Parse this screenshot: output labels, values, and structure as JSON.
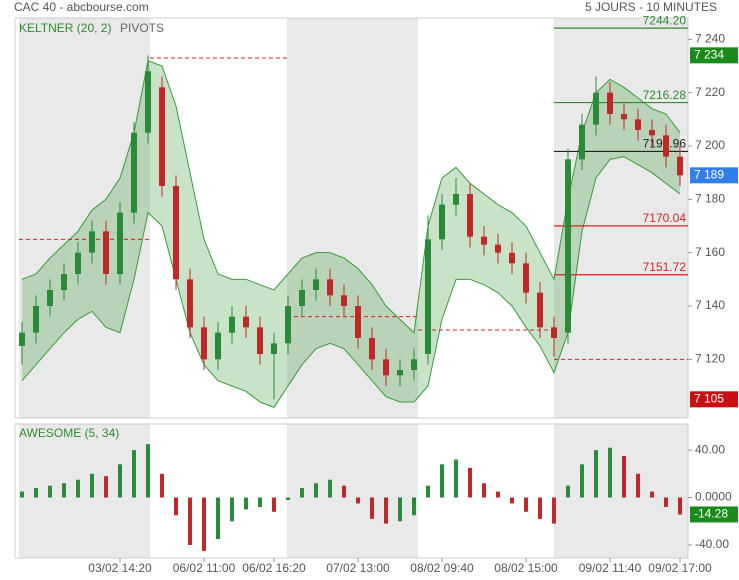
{
  "header": {
    "left": "CAC 40 - abcbourse.com",
    "right": "5 JOURS - 10 MINUTES"
  },
  "chart_data": [
    {
      "type": "candlestick",
      "legend": [
        "KELTNER (20, 2)",
        "PIVOTS"
      ],
      "up_color": "#2a8a3a",
      "down_color": "#c0282a",
      "band_color": "#3a9a3a",
      "categories": [
        null,
        null,
        null,
        null,
        null,
        null,
        null,
        "03/02 14:20",
        null,
        null,
        null,
        null,
        null,
        "06/02 11:00",
        null,
        null,
        null,
        null,
        "06/02 16:20",
        null,
        null,
        null,
        null,
        null,
        "07/02 13:00",
        null,
        null,
        null,
        null,
        null,
        "08/02 09:40",
        null,
        null,
        null,
        null,
        null,
        "08/02 15:00",
        null,
        null,
        null,
        null,
        null,
        "09/02 11:40",
        null,
        null,
        null,
        null,
        "09/02 17:00"
      ],
      "open": [
        7125,
        7130,
        7140,
        7146,
        7152,
        7160,
        7168,
        7152,
        7175,
        7205,
        7222,
        7185,
        7150,
        7132,
        7120,
        7130,
        7136,
        7132,
        7122,
        7126,
        7140,
        7146,
        7150,
        7144,
        7140,
        7128,
        7120,
        7114,
        7116,
        7122,
        7165,
        7178,
        7182,
        7166,
        7163,
        7160,
        7156,
        7145,
        7132,
        7130,
        7195,
        7208,
        7220,
        7212,
        7210,
        7206,
        7204,
        7196
      ],
      "high": [
        7134,
        7144,
        7150,
        7156,
        7164,
        7172,
        7172,
        7179,
        7209,
        7234,
        7226,
        7189,
        7154,
        7136,
        7134,
        7140,
        7140,
        7136,
        7130,
        7144,
        7150,
        7154,
        7154,
        7148,
        7144,
        7132,
        7124,
        7120,
        7124,
        7174,
        7182,
        7188,
        7186,
        7170,
        7167,
        7164,
        7160,
        7149,
        7136,
        7199,
        7212,
        7226,
        7224,
        7216,
        7214,
        7210,
        7208,
        7200
      ],
      "low": [
        7118,
        7126,
        7136,
        7142,
        7148,
        7156,
        7148,
        7148,
        7171,
        7201,
        7181,
        7146,
        7128,
        7116,
        7116,
        7126,
        7128,
        7118,
        7105,
        7122,
        7136,
        7142,
        7140,
        7136,
        7124,
        7116,
        7110,
        7110,
        7112,
        7118,
        7161,
        7174,
        7162,
        7159,
        7156,
        7152,
        7141,
        7128,
        7121,
        7126,
        7191,
        7204,
        7208,
        7206,
        7202,
        7200,
        7192,
        7185
      ],
      "close": [
        7130,
        7140,
        7146,
        7152,
        7160,
        7168,
        7152,
        7175,
        7205,
        7228,
        7185,
        7150,
        7132,
        7120,
        7130,
        7136,
        7132,
        7122,
        7126,
        7140,
        7146,
        7150,
        7144,
        7140,
        7128,
        7120,
        7114,
        7116,
        7120,
        7165,
        7178,
        7182,
        7166,
        7163,
        7160,
        7156,
        7145,
        7132,
        7128,
        7195,
        7208,
        7220,
        7212,
        7210,
        7206,
        7204,
        7196,
        7189
      ],
      "keltner_upper": [
        7150,
        7152,
        7158,
        7163,
        7168,
        7176,
        7180,
        7188,
        7205,
        7232,
        7230,
        7215,
        7190,
        7165,
        7152,
        7150,
        7150,
        7148,
        7146,
        7152,
        7158,
        7160,
        7160,
        7158,
        7154,
        7148,
        7140,
        7135,
        7130,
        7170,
        7188,
        7192,
        7186,
        7182,
        7178,
        7175,
        7170,
        7160,
        7150,
        7180,
        7205,
        7220,
        7225,
        7222,
        7218,
        7214,
        7212,
        7205
      ],
      "keltner_lower": [
        7112,
        7118,
        7124,
        7130,
        7135,
        7138,
        7132,
        7130,
        7150,
        7175,
        7170,
        7150,
        7130,
        7118,
        7112,
        7110,
        7108,
        7104,
        7102,
        7110,
        7118,
        7124,
        7126,
        7124,
        7118,
        7112,
        7106,
        7104,
        7104,
        7110,
        7135,
        7150,
        7150,
        7148,
        7145,
        7140,
        7132,
        7125,
        7115,
        7130,
        7168,
        7188,
        7195,
        7196,
        7193,
        7190,
        7186,
        7182
      ],
      "pivots": [
        {
          "value": 7244.2,
          "label": "7244.20",
          "color": "#2e8b2e"
        },
        {
          "value": 7216.28,
          "label": "7216.28",
          "color": "#2e8b2e"
        },
        {
          "value": 7197.96,
          "label": "7197.96",
          "color": "#222222"
        },
        {
          "value": 7170.04,
          "label": "7170.04",
          "color": "#d62020"
        },
        {
          "value": 7151.72,
          "label": "7151.72",
          "color": "#d62020"
        }
      ],
      "previous_pivots": [
        7165,
        7233,
        7136,
        7131,
        7120
      ],
      "price_markers": [
        {
          "value": 7234,
          "label": "7 234",
          "color": "#1a8a1a"
        },
        {
          "value": 7189,
          "label": "7 189",
          "color": "#2f7fe8"
        },
        {
          "value": 7105,
          "label": "7 105",
          "color": "#c81010"
        }
      ],
      "ylim": [
        7098,
        7248
      ],
      "yticks": [
        {
          "value": 7120,
          "label": "7 120"
        },
        {
          "value": 7140,
          "label": "7 140"
        },
        {
          "value": 7160,
          "label": "7 160"
        },
        {
          "value": 7180,
          "label": "7 180"
        },
        {
          "value": 7200,
          "label": "7 200"
        },
        {
          "value": 7220,
          "label": "7 220"
        },
        {
          "value": 7240,
          "label": "7 240"
        }
      ]
    },
    {
      "type": "bar",
      "title": "AWESOME (5, 34)",
      "up_color": "#2a8a3a",
      "down_color": "#c0282a",
      "last_color": "#1a8a1a",
      "values": [
        5,
        8,
        10,
        12,
        15,
        20,
        18,
        28,
        40,
        45,
        20,
        -15,
        -40,
        -45,
        -35,
        -20,
        -10,
        -8,
        -12,
        -2,
        8,
        12,
        15,
        10,
        -5,
        -18,
        -22,
        -20,
        -15,
        10,
        28,
        32,
        25,
        12,
        5,
        -5,
        -12,
        -18,
        -22,
        10,
        28,
        40,
        42,
        35,
        20,
        5,
        -8,
        -14.28
      ],
      "ylim": [
        -51,
        62
      ],
      "yticks": [
        {
          "value": -40,
          "label": "-40.00"
        },
        {
          "value": 0,
          "label": "0.0000"
        },
        {
          "value": 40,
          "label": "40.00"
        }
      ]
    }
  ]
}
